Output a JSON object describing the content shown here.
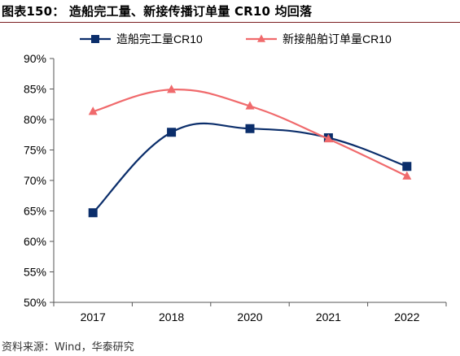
{
  "figure": {
    "title": "图表150：  造船完工量、新接传播订单量 CR10 均回落",
    "source": "资料来源：Wind，华泰研究"
  },
  "chart_data": {
    "type": "line",
    "title": "",
    "xlabel": "",
    "ylabel": "",
    "categories": [
      "2017",
      "2018",
      "2020",
      "2021",
      "2022"
    ],
    "ylim": [
      50,
      90
    ],
    "yticks": [
      "50%",
      "55%",
      "60%",
      "65%",
      "70%",
      "75%",
      "80%",
      "85%",
      "90%"
    ],
    "grid": false,
    "legend_position": "top",
    "series": [
      {
        "name": "造船完工量CR10",
        "values": [
          64.7,
          77.9,
          78.5,
          77.0,
          72.3
        ],
        "color": "#0b2e6b",
        "marker": "square"
      },
      {
        "name": "新接船舶订单量CR10",
        "values": [
          81.3,
          84.9,
          82.2,
          76.8,
          70.7
        ],
        "color": "#f06a6c",
        "marker": "triangle"
      }
    ]
  }
}
